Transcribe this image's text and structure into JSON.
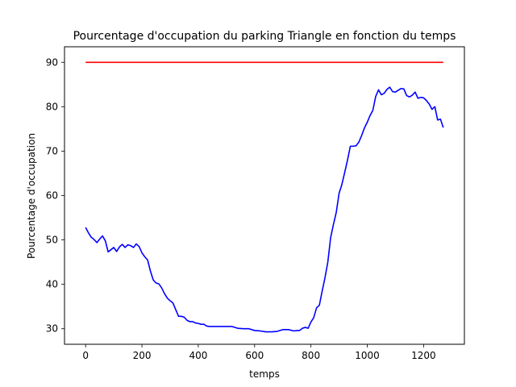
{
  "chart_data": {
    "type": "line",
    "title": "Pourcentage d'occupation du parking Triangle en fonction du temps",
    "xlabel": "temps",
    "ylabel": "Pourcentage d'occupation",
    "xlim": [
      -75,
      1345
    ],
    "ylim": [
      26.5,
      93.5
    ],
    "xticks": [
      0,
      200,
      400,
      600,
      800,
      1000,
      1200
    ],
    "yticks": [
      30,
      40,
      50,
      60,
      70,
      80,
      90
    ],
    "grid": false,
    "series": [
      {
        "color": "#0000ff",
        "x": [
          0,
          10,
          20,
          30,
          40,
          50,
          60,
          70,
          80,
          90,
          100,
          110,
          120,
          130,
          140,
          150,
          160,
          170,
          180,
          190,
          200,
          210,
          220,
          230,
          240,
          250,
          260,
          270,
          280,
          290,
          300,
          310,
          320,
          330,
          340,
          350,
          360,
          370,
          380,
          390,
          400,
          410,
          420,
          430,
          440,
          460,
          480,
          500,
          520,
          540,
          560,
          580,
          600,
          620,
          640,
          660,
          680,
          700,
          720,
          740,
          750,
          760,
          770,
          780,
          790,
          800,
          810,
          820,
          830,
          840,
          850,
          860,
          870,
          880,
          890,
          900,
          910,
          920,
          930,
          940,
          950,
          960,
          970,
          980,
          990,
          1000,
          1010,
          1020,
          1030,
          1040,
          1050,
          1060,
          1070,
          1080,
          1090,
          1100,
          1110,
          1120,
          1130,
          1140,
          1150,
          1160,
          1170,
          1180,
          1190,
          1200,
          1210,
          1220,
          1230,
          1240,
          1250,
          1260,
          1270
        ],
        "y": [
          52.8,
          51.6,
          50.6,
          50.1,
          49.4,
          50.2,
          50.9,
          49.8,
          47.3,
          47.8,
          48.3,
          47.4,
          48.4,
          49.0,
          48.3,
          48.9,
          48.7,
          48.3,
          49.1,
          48.5,
          47.1,
          46.2,
          45.5,
          43.0,
          41.0,
          40.3,
          40.1,
          39.2,
          37.9,
          36.9,
          36.3,
          35.8,
          34.3,
          32.8,
          32.8,
          32.6,
          31.9,
          31.6,
          31.6,
          31.3,
          31.2,
          31.0,
          31.0,
          30.6,
          30.5,
          30.5,
          30.5,
          30.5,
          30.5,
          30.1,
          30.0,
          30.0,
          29.6,
          29.5,
          29.3,
          29.3,
          29.4,
          29.8,
          29.8,
          29.5,
          29.6,
          29.6,
          30.1,
          30.3,
          30.1,
          31.5,
          32.5,
          34.7,
          35.3,
          38.5,
          41.5,
          45.0,
          50.5,
          53.5,
          56.2,
          60.5,
          62.5,
          65.2,
          68.0,
          71.1,
          71.1,
          71.2,
          72.0,
          73.5,
          75.2,
          76.5,
          78.0,
          79.2,
          82.3,
          83.8,
          82.7,
          83.0,
          83.9,
          84.4,
          83.4,
          83.3,
          83.7,
          84.1,
          84.0,
          82.5,
          82.2,
          82.6,
          83.3,
          81.9,
          82.1,
          82.0,
          81.4,
          80.6,
          79.4,
          80.0,
          77.0,
          77.2,
          75.3
        ]
      },
      {
        "color": "#ff0000",
        "x": [
          0,
          1270
        ],
        "y": [
          90,
          90
        ]
      }
    ]
  }
}
